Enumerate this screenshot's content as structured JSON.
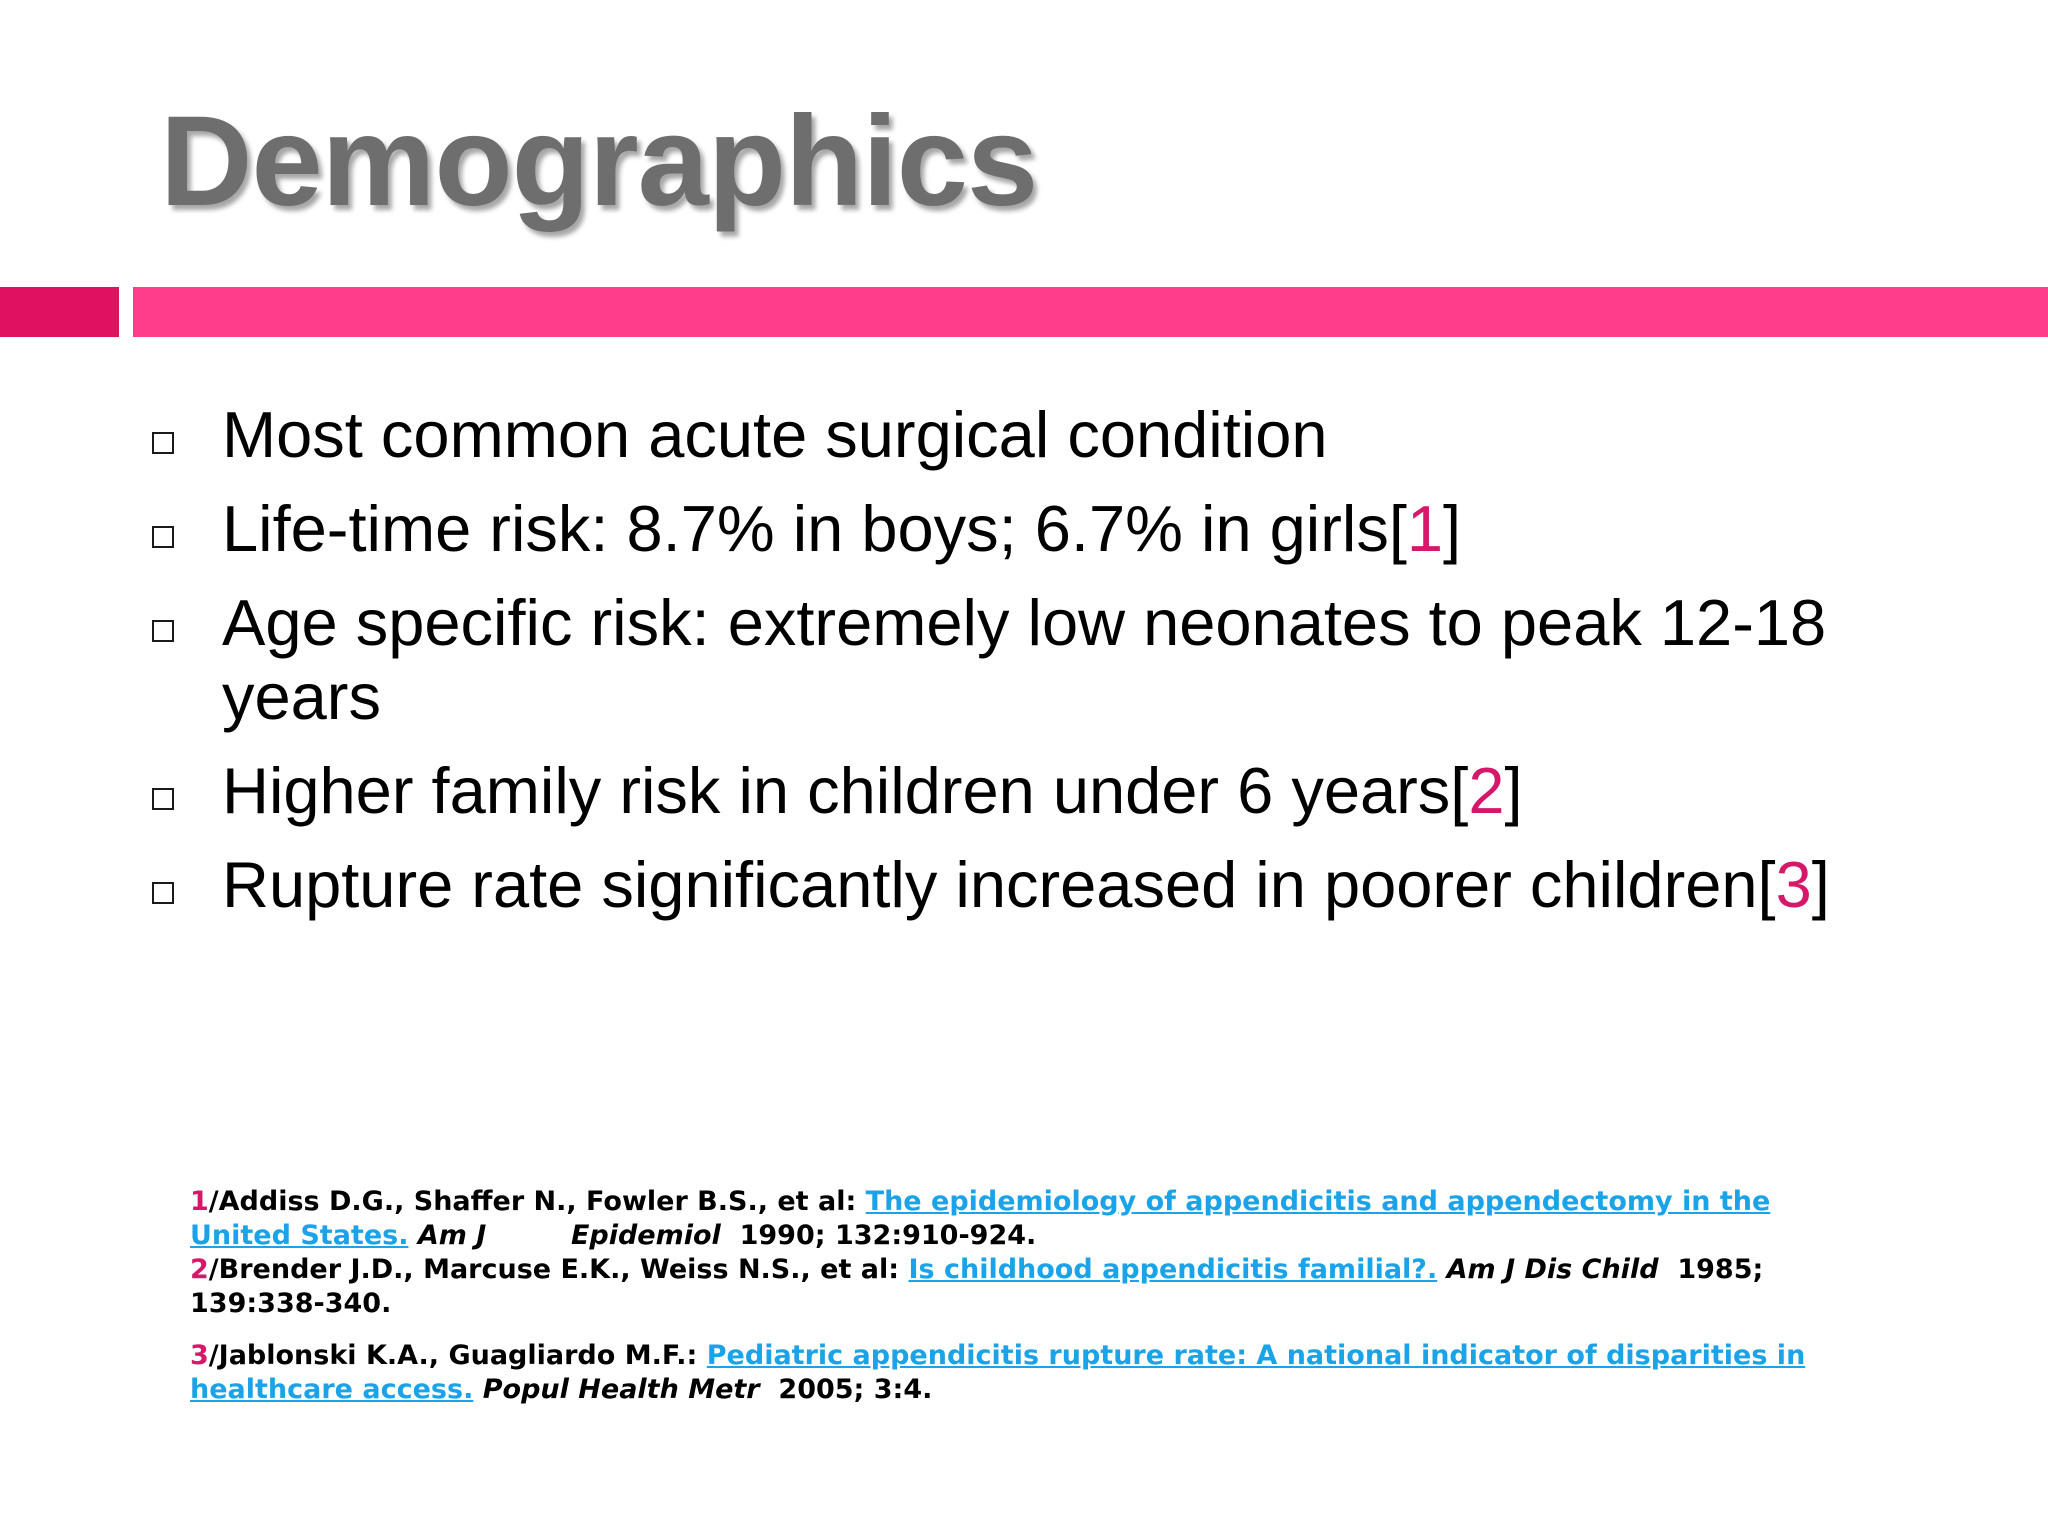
{
  "slide": {
    "title": "Demographics",
    "accent_color": "#ff3d8a",
    "accent_dark_color": "#e0115f",
    "bullets": [
      {
        "text": "Most common acute surgical condition",
        "ref": "",
        "suffix": ""
      },
      {
        "text": "Life-time risk: 8.7% in boys; 6.7% in girls[",
        "ref": "1",
        "suffix": "]"
      },
      {
        "text": "Age specific risk: extremely low neonates to peak 12-18 years",
        "ref": "",
        "suffix": ""
      },
      {
        "text": "Higher family risk in children under 6 years[",
        "ref": "2",
        "suffix": "]"
      },
      {
        "text": "Rupture rate significantly increased in poorer children[",
        "ref": "3",
        "suffix": "]"
      }
    ],
    "references": [
      {
        "index": "1",
        "authors": "/Addiss D.G., Shaffer N., Fowler B.S., et al: ",
        "link": "The epidemiology of appendicitis and appendectomy in the United States.",
        "journal": " Am J         Epidemiol",
        "details": "  1990; 132:910-924."
      },
      {
        "index": "2",
        "authors": "/Brender J.D., Marcuse E.K., Weiss N.S., et al: ",
        "link": "Is childhood appendicitis familial?.",
        "journal": " Am J Dis Child",
        "details": "  1985; 139:338-340."
      },
      {
        "index": "3",
        "authors": "/Jablonski K.A., Guagliardo M.F.: ",
        "link": "Pediatric appendicitis rupture rate: A national indicator of disparities in healthcare access.",
        "journal": " Popul Health Metr",
        "details": "  2005; 3:4."
      }
    ]
  }
}
